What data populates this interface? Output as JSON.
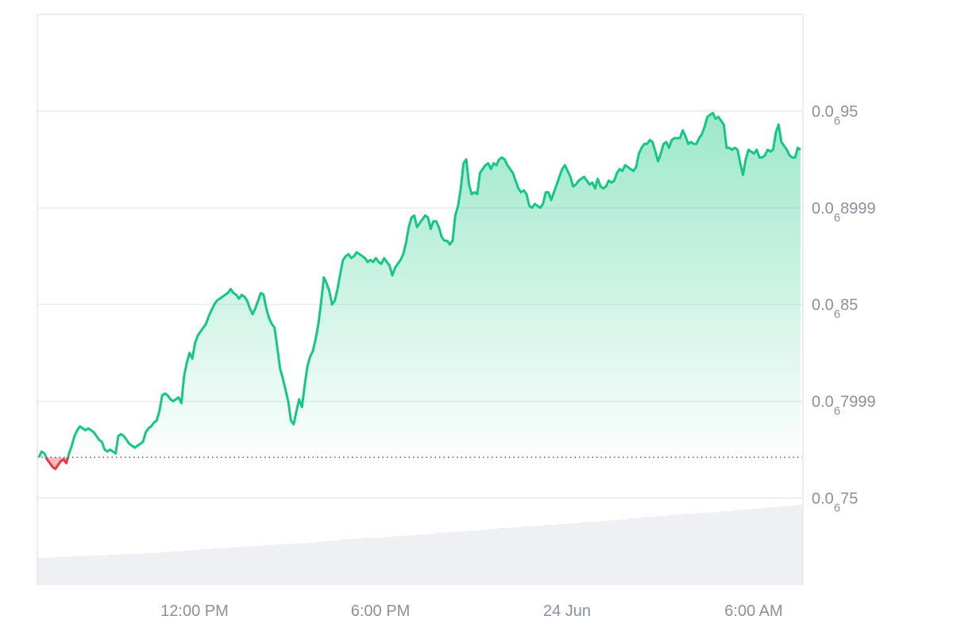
{
  "chart_data": {
    "type": "area",
    "title": "",
    "xlabel": "",
    "ylabel": "",
    "x_ticks": [
      "12:00 PM",
      "6:00 PM",
      "24 Jun",
      "6:00 AM"
    ],
    "y_ticks": [
      {
        "prefix": "0.0",
        "zeros": "6",
        "digits": "95",
        "value": 0.95
      },
      {
        "prefix": "0.0",
        "zeros": "6",
        "digits": "8999",
        "value": 0.8999
      },
      {
        "prefix": "0.0",
        "zeros": "6",
        "digits": "85",
        "value": 0.85
      },
      {
        "prefix": "0.0",
        "zeros": "6",
        "digits": "7999",
        "value": 0.7999
      },
      {
        "prefix": "0.0",
        "zeros": "6",
        "digits": "75",
        "value": 0.75
      }
    ],
    "y_value_note": "values in units of 1e-7 (0.0₀6 notation)",
    "ylim": [
      0.705,
      1.0
    ],
    "baseline": 0.771,
    "grid": true,
    "colors": {
      "up": "#16c784",
      "down": "#ea3943",
      "grid": "#e9ebef",
      "axis_text": "#8a919e",
      "volume": "#eef0f4",
      "baseline": "#58667e"
    },
    "series": [
      {
        "values": [
          0.771,
          0.774,
          0.773,
          0.77,
          0.768,
          0.766,
          0.765,
          0.767,
          0.769,
          0.77,
          0.768,
          0.773,
          0.777,
          0.782,
          0.785,
          0.787,
          0.786,
          0.785,
          0.786,
          0.785,
          0.784,
          0.782,
          0.78,
          0.779,
          0.775,
          0.774,
          0.775,
          0.774,
          0.773,
          0.782,
          0.783,
          0.782,
          0.78,
          0.778,
          0.777,
          0.776,
          0.777,
          0.778,
          0.779,
          0.784,
          0.786,
          0.787,
          0.789,
          0.79,
          0.795,
          0.803,
          0.804,
          0.803,
          0.801,
          0.8,
          0.801,
          0.802,
          0.799,
          0.813,
          0.82,
          0.825,
          0.822,
          0.83,
          0.834,
          0.836,
          0.838,
          0.84,
          0.844,
          0.847,
          0.85,
          0.852,
          0.853,
          0.854,
          0.855,
          0.856,
          0.858,
          0.856,
          0.855,
          0.853,
          0.855,
          0.854,
          0.852,
          0.848,
          0.845,
          0.848,
          0.852,
          0.856,
          0.855,
          0.848,
          0.843,
          0.84,
          0.838,
          0.828,
          0.817,
          0.812,
          0.806,
          0.8,
          0.79,
          0.788,
          0.795,
          0.801,
          0.797,
          0.808,
          0.818,
          0.823,
          0.826,
          0.832,
          0.84,
          0.851,
          0.864,
          0.861,
          0.857,
          0.85,
          0.852,
          0.858,
          0.866,
          0.873,
          0.875,
          0.876,
          0.874,
          0.875,
          0.877,
          0.876,
          0.875,
          0.874,
          0.872,
          0.873,
          0.872,
          0.874,
          0.872,
          0.871,
          0.874,
          0.872,
          0.87,
          0.865,
          0.869,
          0.871,
          0.873,
          0.876,
          0.882,
          0.89,
          0.895,
          0.896,
          0.89,
          0.892,
          0.894,
          0.896,
          0.895,
          0.889,
          0.893,
          0.893,
          0.89,
          0.885,
          0.883,
          0.883,
          0.881,
          0.883,
          0.896,
          0.901,
          0.91,
          0.923,
          0.925,
          0.912,
          0.907,
          0.908,
          0.907,
          0.918,
          0.92,
          0.922,
          0.923,
          0.92,
          0.923,
          0.922,
          0.925,
          0.926,
          0.925,
          0.922,
          0.92,
          0.918,
          0.914,
          0.91,
          0.908,
          0.909,
          0.907,
          0.901,
          0.9,
          0.902,
          0.901,
          0.9,
          0.902,
          0.908,
          0.908,
          0.904,
          0.908,
          0.912,
          0.916,
          0.92,
          0.922,
          0.919,
          0.916,
          0.911,
          0.912,
          0.914,
          0.915,
          0.916,
          0.914,
          0.912,
          0.913,
          0.91,
          0.915,
          0.911,
          0.91,
          0.911,
          0.914,
          0.913,
          0.914,
          0.918,
          0.92,
          0.919,
          0.922,
          0.921,
          0.92,
          0.919,
          0.921,
          0.928,
          0.931,
          0.933,
          0.933,
          0.935,
          0.934,
          0.929,
          0.924,
          0.928,
          0.933,
          0.934,
          0.931,
          0.935,
          0.936,
          0.936,
          0.936,
          0.94,
          0.937,
          0.933,
          0.934,
          0.933,
          0.933,
          0.936,
          0.938,
          0.942,
          0.947,
          0.948,
          0.949,
          0.946,
          0.947,
          0.945,
          0.943,
          0.931,
          0.931,
          0.93,
          0.931,
          0.93,
          0.923,
          0.917,
          0.925,
          0.93,
          0.929,
          0.928,
          0.93,
          0.926,
          0.926,
          0.927,
          0.93,
          0.929,
          0.93,
          0.939,
          0.943,
          0.934,
          0.932,
          0.93,
          0.927,
          0.926,
          0.926,
          0.931,
          0.93
        ]
      }
    ],
    "volume": [
      0.34,
      0.34,
      0.34,
      0.35,
      0.35,
      0.35,
      0.36,
      0.36,
      0.36,
      0.37,
      0.37,
      0.37,
      0.38,
      0.38,
      0.38,
      0.39,
      0.39,
      0.39,
      0.4,
      0.4,
      0.4,
      0.41,
      0.41,
      0.42,
      0.42,
      0.43,
      0.43,
      0.44,
      0.45,
      0.45,
      0.46,
      0.46,
      0.46,
      0.47,
      0.47,
      0.48,
      0.48,
      0.49,
      0.49,
      0.5,
      0.5,
      0.51,
      0.51,
      0.51,
      0.52,
      0.52,
      0.53,
      0.53,
      0.54,
      0.55,
      0.55,
      0.56,
      0.57,
      0.57,
      0.58,
      0.58,
      0.59,
      0.59,
      0.59,
      0.6,
      0.6,
      0.61,
      0.61,
      0.62,
      0.62,
      0.63,
      0.63,
      0.64,
      0.65,
      0.65,
      0.66,
      0.66,
      0.67,
      0.67,
      0.68,
      0.68,
      0.69,
      0.7,
      0.7,
      0.71,
      0.71,
      0.72,
      0.72,
      0.73,
      0.73,
      0.74,
      0.74,
      0.75,
      0.75,
      0.76,
      0.76,
      0.77,
      0.77,
      0.78,
      0.79,
      0.79,
      0.8,
      0.8,
      0.81,
      0.81,
      0.82,
      0.83,
      0.83,
      0.84,
      0.85,
      0.85,
      0.86,
      0.86,
      0.87,
      0.88,
      0.88,
      0.89,
      0.89,
      0.9,
      0.9,
      0.91,
      0.91,
      0.92,
      0.92,
      0.93,
      0.94,
      0.94,
      0.95,
      0.95,
      0.96,
      0.97,
      0.97,
      0.98,
      0.98,
      0.99,
      1.0
    ]
  }
}
